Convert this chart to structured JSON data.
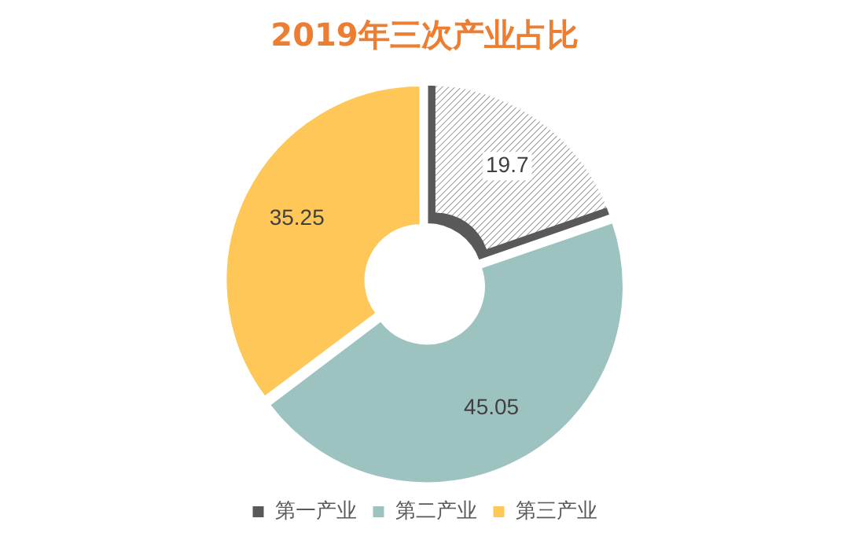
{
  "chart_data": {
    "type": "donut",
    "title": "2019年三次产业占比",
    "categories": [
      "第一产业",
      "第二产业",
      "第三产业"
    ],
    "values": [
      19.7,
      45.05,
      35.25
    ],
    "colors": [
      "#595959",
      "#9dc3c1",
      "#ffc658"
    ],
    "data_labels": true,
    "legend": "bottom"
  }
}
